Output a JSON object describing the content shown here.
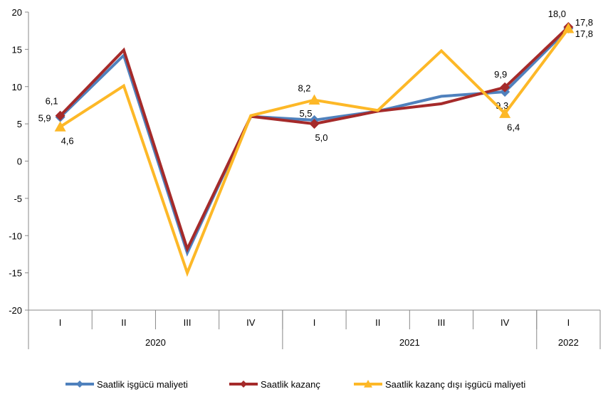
{
  "chart_data": {
    "type": "line",
    "title": "",
    "xlabel": "",
    "ylabel": "",
    "ylim": [
      -20,
      20
    ],
    "yticks": [
      "-20",
      "-15",
      "-10",
      "-5",
      "0",
      "5",
      "10",
      "15",
      "20"
    ],
    "categories": [
      "I",
      "II",
      "III",
      "IV",
      "I",
      "II",
      "III",
      "IV",
      "I"
    ],
    "years": [
      {
        "label": "2020",
        "span": 4
      },
      {
        "label": "2021",
        "span": 4
      },
      {
        "label": "2022",
        "span": 1
      }
    ],
    "grid": false,
    "legend_position": "bottom",
    "series": [
      {
        "name": "Saatlik işgücü maliyeti",
        "color": "#4F81BD",
        "marker": "diamond",
        "values": [
          5.9,
          14.2,
          -12.3,
          6.0,
          5.5,
          6.7,
          8.7,
          9.3,
          17.8
        ],
        "labels": {
          "0": "5,9",
          "4": "5,5",
          "7": "9,3",
          "8": "17,8"
        }
      },
      {
        "name": "Saatlik kazanç",
        "color": "#A52A2A",
        "marker": "diamond",
        "values": [
          6.1,
          14.9,
          -11.8,
          6.0,
          5.0,
          6.7,
          7.7,
          9.9,
          18.0
        ],
        "labels": {
          "0": "6,1",
          "4": "5,0",
          "7": "9,9",
          "8": "18,0"
        }
      },
      {
        "name": "Saatlik kazanç dışı işgücü maliyeti",
        "color": "#FDB827",
        "marker": "triangle",
        "values": [
          4.6,
          10.1,
          -15.0,
          6.1,
          8.2,
          6.8,
          14.8,
          6.4,
          17.8
        ],
        "labels": {
          "0": "4,6",
          "4": "8,2",
          "7": "6,4",
          "8": "17,8"
        }
      }
    ]
  }
}
